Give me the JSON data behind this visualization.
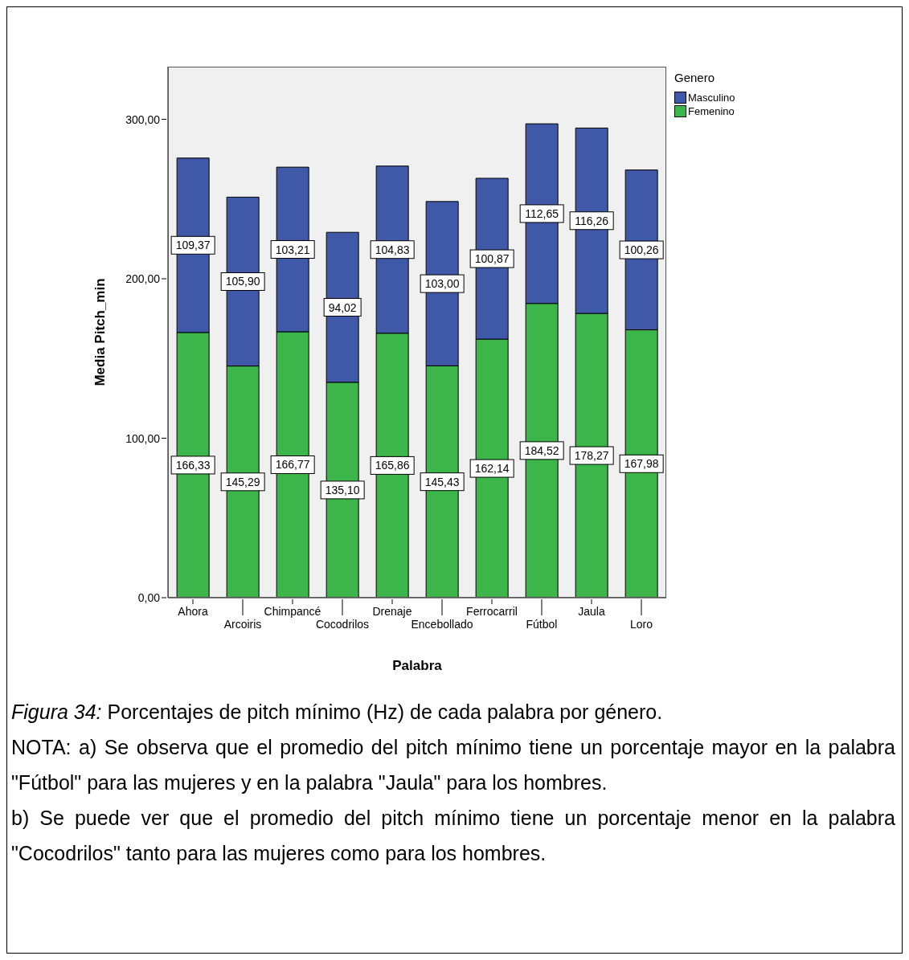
{
  "chart_data": {
    "type": "bar",
    "stacked": true,
    "xlabel": "Palabra",
    "ylabel": "Media Pitch_min",
    "legend_title": "Genero",
    "legend": "top right",
    "categories": [
      "Ahora",
      "Arcoiris",
      "Chimpancé",
      "Cocodrilos",
      "Drenaje",
      "Encebollado",
      "Ferrocarril",
      "Fútbol",
      "Jaula",
      "Loro"
    ],
    "series": [
      {
        "name": "Femenino",
        "color": "#3cb54a",
        "values": [
          166.33,
          145.29,
          166.77,
          135.1,
          165.86,
          145.43,
          162.14,
          184.52,
          178.27,
          167.98
        ],
        "value_labels": [
          "166,33",
          "145,29",
          "166,77",
          "135,10",
          "165,86",
          "145,43",
          "162,14",
          "184,52",
          "178,27",
          "167,98"
        ]
      },
      {
        "name": "Masculino",
        "color": "#3f58a8",
        "values": [
          109.37,
          105.9,
          103.21,
          94.02,
          104.83,
          103.0,
          100.87,
          112.65,
          116.26,
          100.26
        ],
        "value_labels": [
          "109,37",
          "105,90",
          "103,21",
          "94,02",
          "104,83",
          "103,00",
          "100,87",
          "112,65",
          "116,26",
          "100,26"
        ]
      }
    ],
    "ylim": [
      0,
      333
    ],
    "yticks": [
      {
        "value": 0,
        "label": "0,00"
      },
      {
        "value": 100,
        "label": "100,00"
      },
      {
        "value": 200,
        "label": "200,00"
      },
      {
        "value": 300,
        "label": "300,00"
      }
    ],
    "grid": false,
    "annotations": [
      "Figura 34:",
      "Porcentajes de pitch mínimo (Hz) de cada palabra por género.",
      "NOTA: a) Se observa que el promedio del pitch mínimo tiene un porcentaje mayor en la palabra \"Fútbol\" para las mujeres y en la palabra \"Jaula\" para los hombres.",
      "b) Se puede ver que el promedio del pitch mínimo tiene un porcentaje menor en la palabra \"Cocodrilos\" tanto para las mujeres como para los hombres."
    ]
  }
}
